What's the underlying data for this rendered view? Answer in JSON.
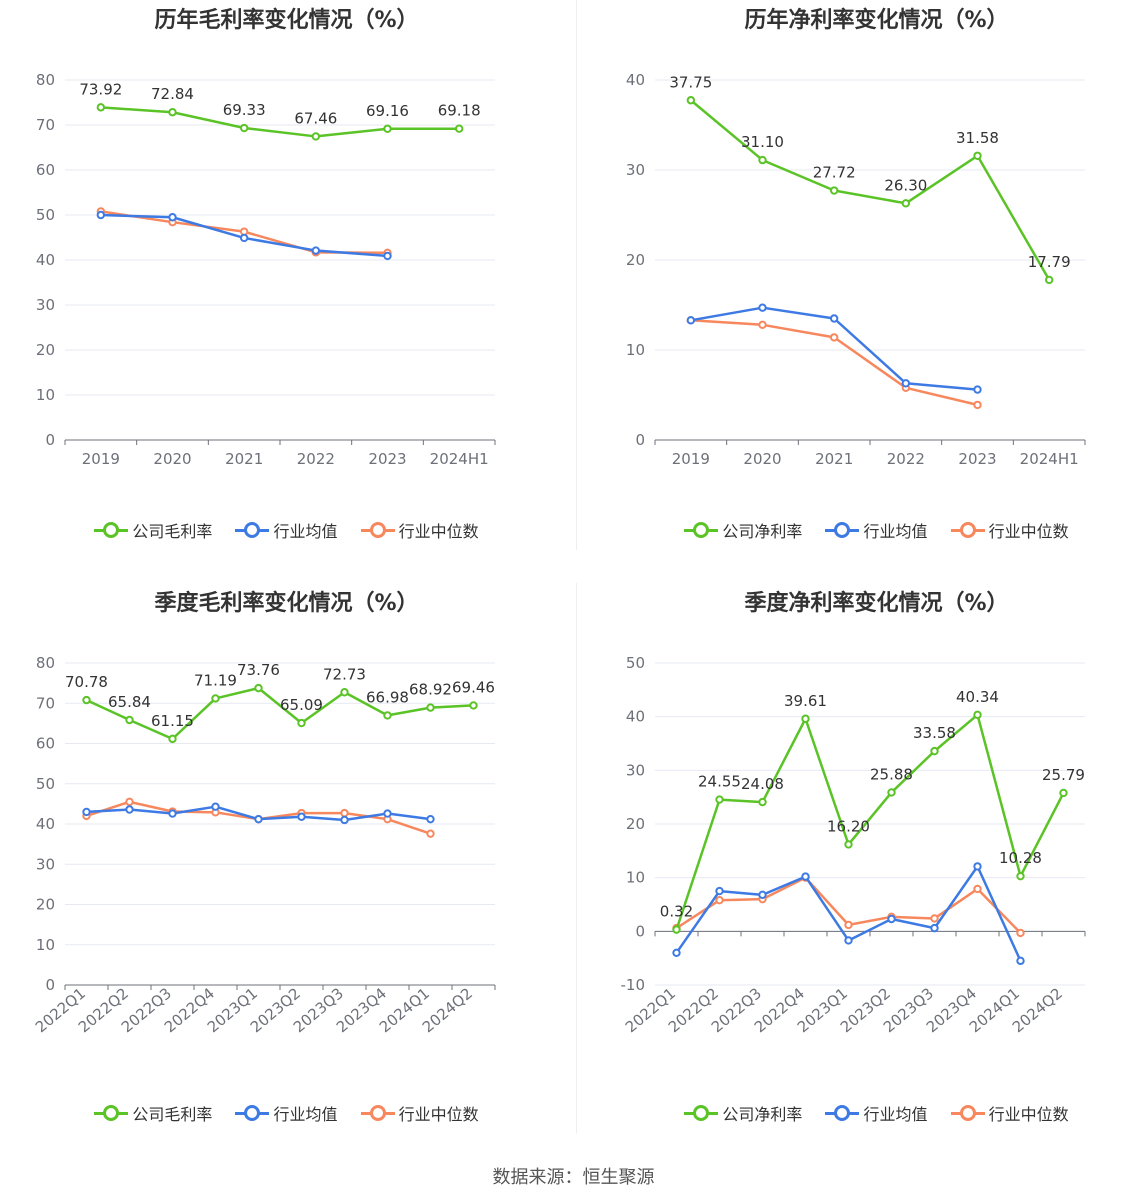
{
  "source": "数据来源：恒生聚源",
  "colors": {
    "company": "#5ac326",
    "avg": "#3d7ae3",
    "median": "#f7875d",
    "grid": "#e6e9f2",
    "axis": "#6e7079",
    "label": "#333333"
  },
  "chart_data": [
    {
      "type": "line",
      "title": "历年毛利率变化情况（%）",
      "categories": [
        "2019",
        "2020",
        "2021",
        "2022",
        "2023",
        "2024H1"
      ],
      "ylim": [
        0,
        80
      ],
      "yticks": [
        0,
        10,
        20,
        30,
        40,
        50,
        60,
        70,
        80
      ],
      "rotate_x": false,
      "series": [
        {
          "name": "公司毛利率",
          "values": [
            73.92,
            72.84,
            69.33,
            67.46,
            69.16,
            69.18
          ],
          "labels": [
            "73.92",
            "72.84",
            "69.33",
            "67.46",
            "69.16",
            "69.18"
          ]
        },
        {
          "name": "行业均值",
          "values": [
            50.0,
            49.5,
            44.9,
            42.1,
            40.9,
            null
          ]
        },
        {
          "name": "行业中位数",
          "values": [
            50.8,
            48.4,
            46.3,
            41.7,
            41.6,
            null
          ]
        }
      ],
      "legend": "bottom"
    },
    {
      "type": "line",
      "title": "历年净利率变化情况（%）",
      "categories": [
        "2019",
        "2020",
        "2021",
        "2022",
        "2023",
        "2024H1"
      ],
      "ylim": [
        0,
        40
      ],
      "yticks": [
        0,
        10,
        20,
        30,
        40
      ],
      "rotate_x": false,
      "series": [
        {
          "name": "公司净利率",
          "values": [
            37.75,
            31.1,
            27.72,
            26.3,
            31.58,
            17.79
          ],
          "labels": [
            "37.75",
            "31.10",
            "27.72",
            "26.30",
            "31.58",
            "17.79"
          ]
        },
        {
          "name": "行业均值",
          "values": [
            13.3,
            14.7,
            13.5,
            6.3,
            5.6,
            null
          ]
        },
        {
          "name": "行业中位数",
          "values": [
            13.3,
            12.8,
            11.4,
            5.8,
            3.9,
            null
          ]
        }
      ],
      "legend": "bottom"
    },
    {
      "type": "line",
      "title": "季度毛利率变化情况（%）",
      "categories": [
        "2022Q1",
        "2022Q2",
        "2022Q3",
        "2022Q4",
        "2023Q1",
        "2023Q2",
        "2023Q3",
        "2023Q4",
        "2024Q1",
        "2024Q2"
      ],
      "ylim": [
        0,
        80
      ],
      "yticks": [
        0,
        10,
        20,
        30,
        40,
        50,
        60,
        70,
        80
      ],
      "rotate_x": true,
      "series": [
        {
          "name": "公司毛利率",
          "values": [
            70.78,
            65.84,
            61.15,
            71.19,
            73.76,
            65.09,
            72.73,
            66.98,
            68.92,
            69.46
          ],
          "labels": [
            "70.78",
            "65.84",
            "61.15",
            "71.19",
            "73.76",
            "65.09",
            "72.73",
            "66.98",
            "68.92",
            "69.46"
          ]
        },
        {
          "name": "行业均值",
          "values": [
            43.0,
            43.6,
            42.6,
            44.3,
            41.2,
            41.8,
            41.0,
            42.6,
            41.2,
            null
          ]
        },
        {
          "name": "行业中位数",
          "values": [
            42.0,
            45.5,
            43.1,
            42.9,
            41.2,
            42.7,
            42.7,
            41.2,
            37.6,
            null
          ]
        }
      ],
      "legend": "bottom"
    },
    {
      "type": "line",
      "title": "季度净利率变化情况（%）",
      "categories": [
        "2022Q1",
        "2022Q2",
        "2022Q3",
        "2022Q4",
        "2023Q1",
        "2023Q2",
        "2023Q3",
        "2023Q4",
        "2024Q1",
        "2024Q2"
      ],
      "ylim": [
        -10,
        50
      ],
      "yticks": [
        -10,
        0,
        10,
        20,
        30,
        40,
        50
      ],
      "rotate_x": true,
      "series": [
        {
          "name": "公司净利率",
          "values": [
            0.32,
            24.55,
            24.08,
            39.61,
            16.2,
            25.88,
            33.58,
            40.34,
            10.28,
            25.79
          ],
          "labels": [
            "0.32",
            "24.55",
            "24.08",
            "39.61",
            "16.20",
            "25.88",
            "33.58",
            "40.34",
            "10.28",
            "25.79"
          ]
        },
        {
          "name": "行业均值",
          "values": [
            -4.0,
            7.5,
            6.8,
            10.2,
            -1.7,
            2.3,
            0.6,
            12.1,
            -5.5,
            null
          ]
        },
        {
          "name": "行业中位数",
          "values": [
            0.6,
            5.8,
            6.0,
            10.0,
            1.2,
            2.7,
            2.4,
            7.9,
            -0.3,
            null
          ]
        }
      ],
      "legend": "bottom"
    }
  ]
}
